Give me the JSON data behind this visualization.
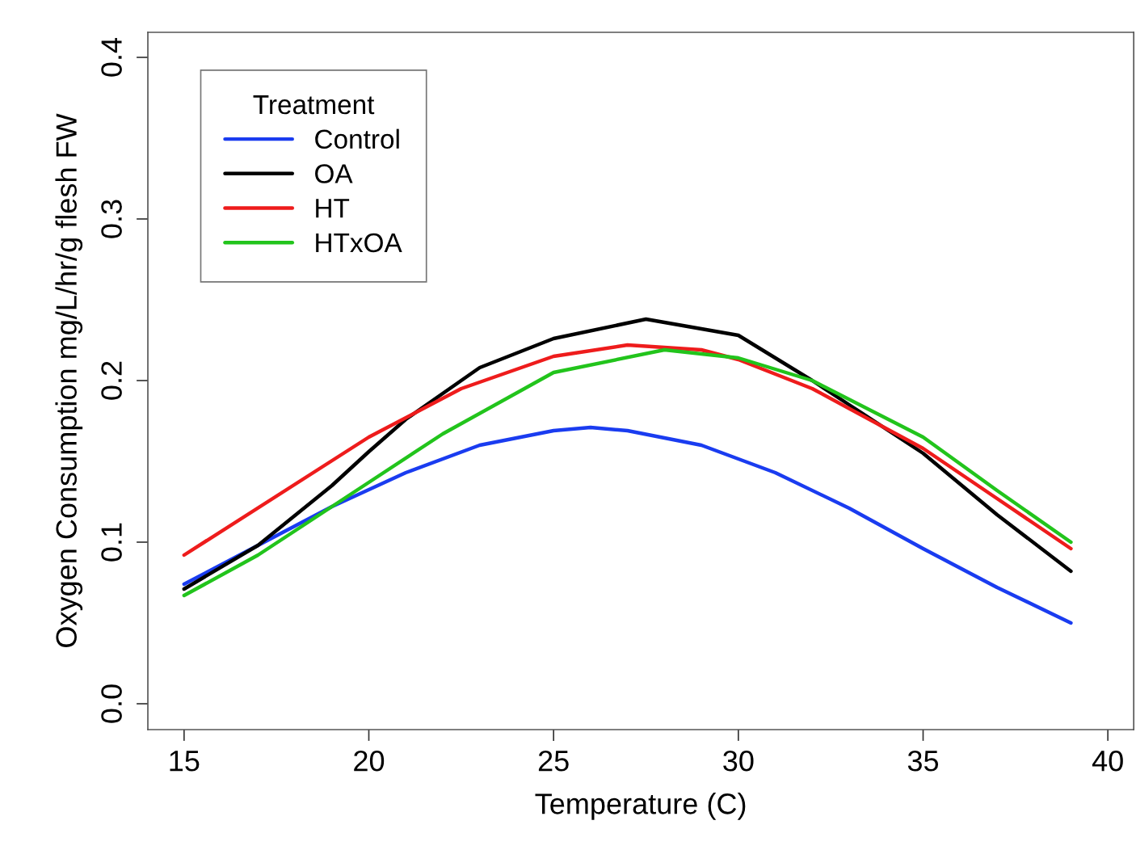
{
  "chart_data": {
    "type": "line",
    "xlabel": "Temperature (C)",
    "ylabel": "Oxygen Consumption mg/L/hr/g flesh FW",
    "legend_title": "Treatment",
    "legend": "top left",
    "grid": false,
    "marker": "none",
    "line_style": "solid",
    "xlim": [
      14.02,
      40.7
    ],
    "ylim": [
      -0.016,
      0.4155
    ],
    "xticks": [
      15,
      20,
      25,
      30,
      35,
      40
    ],
    "yticks": [
      {
        "value": 0,
        "label": "0.0"
      },
      0.1,
      0.2,
      0.3,
      0.4
    ],
    "series": [
      {
        "name": "Control",
        "color": "#1a3cf0",
        "x": [
          15,
          17,
          19,
          21,
          23,
          25,
          26,
          27,
          29,
          31,
          33,
          35,
          37,
          39
        ],
        "values": [
          0.074,
          0.098,
          0.122,
          0.143,
          0.16,
          0.169,
          0.171,
          0.169,
          0.16,
          0.143,
          0.121,
          0.096,
          0.072,
          0.05
        ]
      },
      {
        "name": "OA",
        "color": "#000000",
        "x": [
          15,
          17,
          19,
          20,
          21,
          23,
          25,
          27.5,
          30,
          32,
          33,
          35,
          37,
          39
        ],
        "values": [
          0.071,
          0.098,
          0.135,
          0.156,
          0.176,
          0.208,
          0.226,
          0.238,
          0.228,
          0.2,
          0.185,
          0.155,
          0.117,
          0.082
        ]
      },
      {
        "name": "HT",
        "color": "#ee1c1c",
        "x": [
          15,
          20,
          22.5,
          25,
          27,
          29,
          30,
          32,
          35,
          37,
          39
        ],
        "values": [
          0.092,
          0.165,
          0.195,
          0.215,
          0.222,
          0.219,
          0.213,
          0.195,
          0.158,
          0.127,
          0.096
        ]
      },
      {
        "name": "HTxOA",
        "color": "#22c41c",
        "x": [
          15,
          17,
          19,
          20,
          22,
          25,
          28,
          30,
          32,
          35,
          37,
          39
        ],
        "values": [
          0.067,
          0.092,
          0.122,
          0.137,
          0.167,
          0.205,
          0.219,
          0.214,
          0.2,
          0.165,
          0.132,
          0.1
        ]
      }
    ]
  }
}
